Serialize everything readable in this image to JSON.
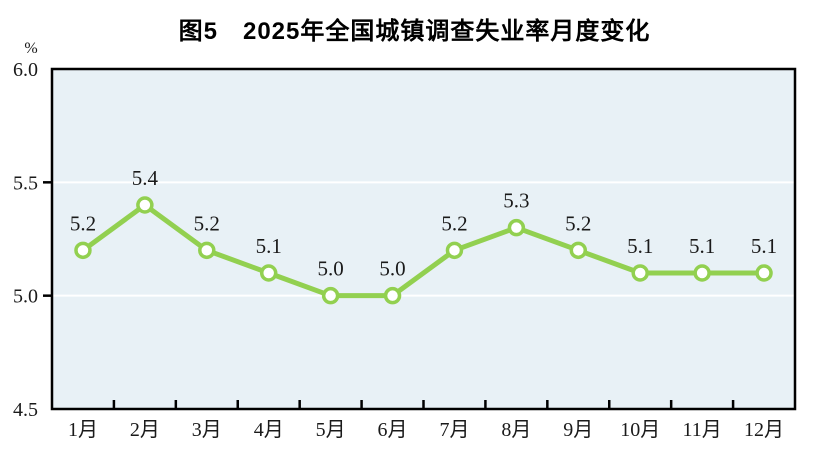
{
  "title": "图5　2025年全国城镇调查失业率月度变化",
  "chart_data": {
    "type": "line",
    "title": "图5　2025年全国城镇调查失业率月度变化",
    "unit_label": "%",
    "categories": [
      "1月",
      "2月",
      "3月",
      "4月",
      "5月",
      "6月",
      "7月",
      "8月",
      "9月",
      "10月",
      "11月",
      "12月"
    ],
    "series": [
      {
        "name": "全国城镇调查失业率",
        "values": [
          5.2,
          5.4,
          5.2,
          5.1,
          5.0,
          5.0,
          5.2,
          5.3,
          5.2,
          5.1,
          5.1,
          5.1
        ],
        "point_labels": [
          "5.2",
          "5.4",
          "5.2",
          "5.1",
          "5.0",
          "5.0",
          "5.2",
          "5.3",
          "5.2",
          "5.1",
          "5.1",
          "5.1"
        ]
      }
    ],
    "ylim": [
      4.5,
      6.0
    ],
    "y_ticks": [
      6.0,
      5.5,
      5.0,
      4.5
    ],
    "y_tick_labels": [
      "6.0",
      "5.5",
      "5.0",
      "4.5"
    ],
    "gridline_values": [
      5.5,
      5.0
    ],
    "grid": "on",
    "legend_position": "none",
    "colors": {
      "line": "#92d050",
      "marker_fill": "#ffffff",
      "plot_background": "#e8f1f6",
      "gridline": "#ffffff",
      "axis": "#000000",
      "text": "#1a1a1a"
    }
  }
}
